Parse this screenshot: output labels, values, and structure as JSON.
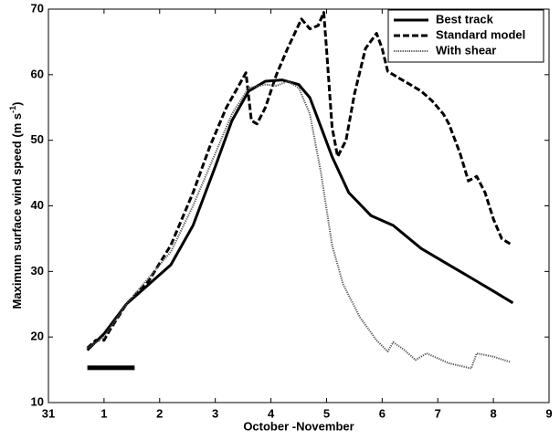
{
  "chart_data": {
    "type": "line",
    "xlabel": "October -November",
    "ylabel": {
      "text": "Maximum surface wind speed (m s",
      "superscript": "-1",
      "suffix": ")"
    },
    "xlim": [
      0,
      9
    ],
    "xticks": [
      {
        "value": 0,
        "label": "31"
      },
      1,
      2,
      3,
      4,
      5,
      6,
      7,
      8,
      9
    ],
    "ylim": [
      10,
      70
    ],
    "yticks": [
      10,
      20,
      30,
      40,
      50,
      60,
      70
    ],
    "grid": false,
    "legend": "upper right",
    "period": {
      "x": [
        0.7,
        1.55
      ],
      "y": 15.3,
      "color": "#000000"
    },
    "series": [
      {
        "name": "Best track",
        "color": "#000000",
        "style": "solid",
        "x": [
          0.7,
          1.0,
          1.4,
          1.8,
          2.2,
          2.6,
          3.0,
          3.3,
          3.6,
          3.9,
          4.2,
          4.5,
          4.7,
          4.9,
          5.1,
          5.4,
          5.8,
          6.2,
          6.7,
          7.1,
          7.6,
          8.0,
          8.35
        ],
        "values": [
          18,
          20.5,
          25,
          28,
          31,
          37,
          46,
          53,
          57.5,
          59,
          59.2,
          58.5,
          56.5,
          52,
          47.5,
          42,
          38.5,
          37,
          33.5,
          31.5,
          29,
          27,
          25.2
        ]
      },
      {
        "name": "Standard model",
        "color": "#000000",
        "style": "dashed",
        "x": [
          0.7,
          0.85,
          1.0,
          1.1,
          1.4,
          1.8,
          2.2,
          2.6,
          2.9,
          3.2,
          3.4,
          3.55,
          3.65,
          3.75,
          3.9,
          4.1,
          4.3,
          4.55,
          4.7,
          4.85,
          4.95,
          5.0,
          5.1,
          5.2,
          5.35,
          5.5,
          5.7,
          5.9,
          6.0,
          6.1,
          6.3,
          6.5,
          6.7,
          6.9,
          7.1,
          7.2,
          7.4,
          7.55,
          7.7,
          7.85,
          8.0,
          8.15,
          8.3
        ],
        "values": [
          18.3,
          19.5,
          19.5,
          21,
          25,
          28.5,
          34,
          42,
          49,
          55,
          58,
          60.3,
          53,
          52.5,
          55,
          60,
          64,
          68.5,
          67,
          67.5,
          69.5,
          64,
          52,
          47.5,
          50,
          57,
          64,
          66.3,
          64,
          60.5,
          59.5,
          58.5,
          57.5,
          56,
          54,
          52.5,
          48,
          43.8,
          44.5,
          42,
          38,
          35,
          34.2
        ]
      },
      {
        "name": "With shear",
        "color": "#555555",
        "style": "dotted",
        "x": [
          0.7,
          1.0,
          1.4,
          1.8,
          2.2,
          2.6,
          3.0,
          3.3,
          3.6,
          3.9,
          4.1,
          4.3,
          4.5,
          4.7,
          4.9,
          5.1,
          5.3,
          5.6,
          5.9,
          6.1,
          6.2,
          6.4,
          6.6,
          6.8,
          7.2,
          7.6,
          7.7,
          8.0,
          8.3
        ],
        "values": [
          18.3,
          20,
          25,
          29,
          33,
          40,
          48,
          54,
          58,
          58.5,
          58.3,
          59,
          58,
          54,
          45,
          34,
          28,
          23,
          19.5,
          17.8,
          19.2,
          18,
          16.5,
          17.5,
          16,
          15.2,
          17.5,
          17,
          16.2
        ]
      }
    ]
  }
}
